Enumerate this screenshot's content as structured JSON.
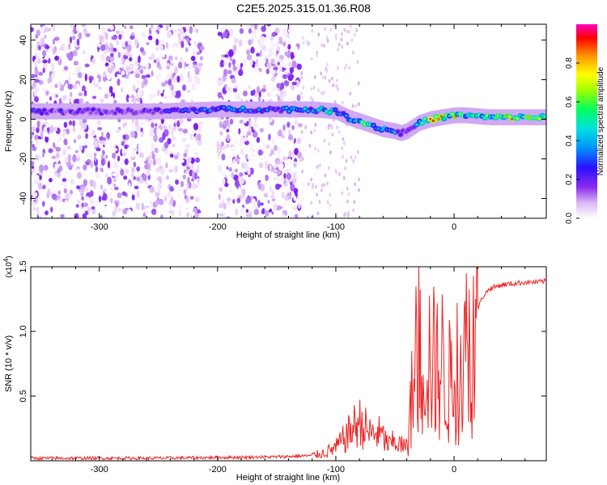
{
  "page_title": "C2E5.2025.315.01.36.R08",
  "colors": {
    "axis": "#000000",
    "snr_line": "#ee2222",
    "colormap": [
      "#ffffff",
      "#e6c8f5",
      "#b47ff0",
      "#7a1cf0",
      "#2a10ff",
      "#0090ff",
      "#00e0e0",
      "#00ff60",
      "#a0ff00",
      "#ffff00",
      "#ff9000",
      "#ff0000",
      "#ff00c0"
    ]
  },
  "chart_data": [
    {
      "type": "heatmap",
      "title": "C2E5.2025.315.01.36.R08",
      "xlabel": "Height of straight line (km)",
      "ylabel": "Frequency (Hz)",
      "xlim": [
        -358,
        78
      ],
      "ylim": [
        -50,
        48
      ],
      "x_ticks": [
        -300,
        -200,
        -100,
        0
      ],
      "x_tick_labels": [
        "-300",
        "-200",
        "-100",
        "0"
      ],
      "y_ticks": [
        -40,
        -20,
        0,
        20,
        40
      ],
      "y_tick_labels": [
        "-40",
        "-20",
        "0",
        "20",
        "40"
      ],
      "colorbar": {
        "label": "Normalized spectral amplitude",
        "range": [
          0,
          1
        ],
        "ticks": [
          0.0,
          0.2,
          0.4,
          0.6,
          0.8
        ],
        "tick_labels": [
          "0.0",
          "0.2",
          "0.4",
          "0.6",
          "0.8"
        ]
      },
      "ridge": {
        "description_points_x_km": [
          -358,
          -300,
          -250,
          -200,
          -150,
          -120,
          -100,
          -90,
          -75,
          -60,
          -50,
          -45,
          -40,
          -30,
          -20,
          -10,
          0,
          10,
          30,
          60,
          78
        ],
        "frequency_hz": [
          4,
          4,
          4,
          5,
          5,
          5,
          4,
          1,
          -2,
          -5,
          -6,
          -7,
          -6,
          -2,
          0,
          1,
          2,
          2,
          1,
          1,
          1
        ],
        "peak_amplitude": [
          0.35,
          0.3,
          0.35,
          0.5,
          0.45,
          0.55,
          0.6,
          0.55,
          0.7,
          0.55,
          0.5,
          0.45,
          0.4,
          0.5,
          0.9,
          0.8,
          0.8,
          0.6,
          0.75,
          0.85,
          0.9
        ]
      },
      "noise_region_km": [
        -358,
        -130
      ]
    },
    {
      "type": "line",
      "xlabel": "Height of straight line (km)",
      "ylabel": "SNR (10 * v/v)",
      "y_multiplier_label": "(x10",
      "y_multiplier_exponent": "4",
      "y_multiplier_close": ")",
      "xlim": [
        -358,
        78
      ],
      "ylim": [
        0,
        1.5
      ],
      "x_ticks": [
        -300,
        -200,
        -100,
        0
      ],
      "x_tick_labels": [
        "-300",
        "-200",
        "-100",
        "0"
      ],
      "y_ticks": [
        0.5,
        1.0,
        1.5
      ],
      "y_tick_labels": [
        "0.5",
        "1.0",
        "1.5"
      ],
      "series": [
        {
          "x": [
            -358,
            -300,
            -250,
            -200,
            -150,
            -120,
            -110,
            -100,
            -95,
            -90,
            -85,
            -80,
            -75,
            -70,
            -65,
            -60,
            -55,
            -50,
            -45,
            -40,
            -35,
            -30,
            -25,
            -20,
            -15,
            -10,
            -5,
            0,
            5,
            10,
            15,
            20,
            25,
            30,
            40,
            50,
            60,
            70,
            78
          ],
          "y": [
            0.02,
            0.02,
            0.02,
            0.025,
            0.03,
            0.04,
            0.06,
            0.1,
            0.15,
            0.2,
            0.26,
            0.3,
            0.25,
            0.2,
            0.22,
            0.18,
            0.12,
            0.15,
            0.12,
            0.1,
            0.55,
            0.75,
            0.85,
            0.8,
            0.7,
            0.75,
            0.6,
            0.6,
            0.75,
            0.85,
            1.0,
            1.18,
            1.28,
            1.33,
            1.36,
            1.37,
            1.38,
            1.38,
            1.39
          ]
        }
      ]
    }
  ]
}
